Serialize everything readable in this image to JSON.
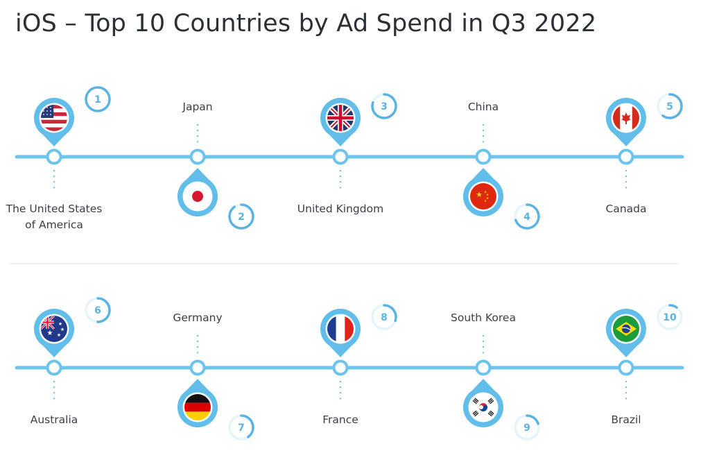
{
  "title": "iOS – Top 10 Countries by Ad Spend in Q3 2022",
  "colors": {
    "line": "#6cc3ee",
    "pin": "#61bde9",
    "pinInner": "#ffffff",
    "ring": "#5ab3e3",
    "ringTrack": "#e6f4fb",
    "divider": "#e3e6e9"
  },
  "chart_data": {
    "type": "timeline",
    "rows": [
      {
        "items": [
          {
            "rank": 1,
            "country": "The United States of America",
            "label_lines": [
              "The United States",
              "of America"
            ],
            "flag": "us-flag-icon"
          },
          {
            "rank": 2,
            "country": "Japan",
            "label_lines": [
              "Japan"
            ],
            "flag": "japan-flag-icon"
          },
          {
            "rank": 3,
            "country": "United Kingdom",
            "label_lines": [
              "United Kingdom"
            ],
            "flag": "uk-flag-icon"
          },
          {
            "rank": 4,
            "country": "China",
            "label_lines": [
              "China"
            ],
            "flag": "china-flag-icon"
          },
          {
            "rank": 5,
            "country": "Canada",
            "label_lines": [
              "Canada"
            ],
            "flag": "canada-flag-icon"
          }
        ]
      },
      {
        "items": [
          {
            "rank": 6,
            "country": "Australia",
            "label_lines": [
              "Australia"
            ],
            "flag": "australia-flag-icon"
          },
          {
            "rank": 7,
            "country": "Germany",
            "label_lines": [
              "Germany"
            ],
            "flag": "germany-flag-icon"
          },
          {
            "rank": 8,
            "country": "France",
            "label_lines": [
              "France"
            ],
            "flag": "france-flag-icon"
          },
          {
            "rank": 9,
            "country": "South Korea",
            "label_lines": [
              "South Korea"
            ],
            "flag": "south-korea-flag-icon"
          },
          {
            "rank": 10,
            "country": "Brazil",
            "label_lines": [
              "Brazil"
            ],
            "flag": "brazil-flag-icon"
          }
        ]
      }
    ]
  }
}
